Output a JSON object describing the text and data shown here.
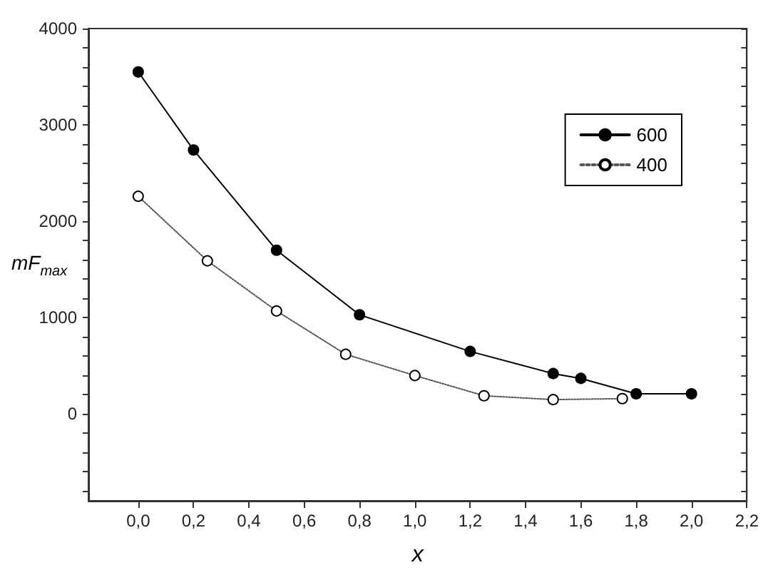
{
  "chart_data": {
    "type": "line",
    "xlabel": "x",
    "ylabel": "mF$_{max}$",
    "xlim": [
      -0.18,
      2.2
    ],
    "xticks": [
      {
        "value": 0,
        "label": "0,0"
      },
      {
        "value": 0.2,
        "label": "0,2"
      },
      {
        "value": 0.4,
        "label": "0,4"
      },
      {
        "value": 0.6,
        "label": "0,6"
      },
      {
        "value": 0.8,
        "label": "0,8"
      },
      {
        "value": 1.0,
        "label": "1,0"
      },
      {
        "value": 1.2,
        "label": "1,2"
      },
      {
        "value": 1.4,
        "label": "1,4"
      },
      {
        "value": 1.6,
        "label": "1,6"
      },
      {
        "value": 1.8,
        "label": "1,8"
      },
      {
        "value": 2.0,
        "label": "2,0"
      },
      {
        "value": 2.2,
        "label": "2,2"
      }
    ],
    "ylim": [
      -900,
      4000
    ],
    "yticks": [
      {
        "value": -800,
        "label": null
      },
      {
        "value": -600,
        "label": null
      },
      {
        "value": -400,
        "label": null
      },
      {
        "value": -200,
        "label": null
      },
      0,
      {
        "value": 200,
        "label": null
      },
      {
        "value": 400,
        "label": null
      },
      {
        "value": 600,
        "label": null
      },
      {
        "value": 800,
        "label": null
      },
      1000,
      {
        "value": 1200,
        "label": null
      },
      {
        "value": 1400,
        "label": null
      },
      {
        "value": 1600,
        "label": null
      },
      {
        "value": 1800,
        "label": null
      },
      2000,
      {
        "value": 2200,
        "label": null
      },
      {
        "value": 2400,
        "label": null
      },
      {
        "value": 2600,
        "label": null
      },
      {
        "value": 2800,
        "label": null
      },
      3000,
      {
        "value": 3200,
        "label": null
      },
      {
        "value": 3400,
        "label": null
      },
      {
        "value": 3600,
        "label": null
      },
      {
        "value": 3800,
        "label": null
      },
      4000
    ],
    "grid": false,
    "legend": "top right",
    "marker": "circle",
    "series": [
      {
        "name": "600",
        "color": "#000000",
        "line_style": "solid",
        "x": [
          0,
          0.2,
          0.5,
          0.8,
          1.2,
          1.5,
          1.6,
          1.8,
          2.0
        ],
        "values": [
          3550,
          2740,
          1700,
          1030,
          650,
          420,
          370,
          210,
          210
        ]
      },
      {
        "name": "400",
        "color": "#555555",
        "line_style": "dotted",
        "x": [
          0,
          0.25,
          0.5,
          0.75,
          1.0,
          1.25,
          1.5,
          1.75
        ],
        "values": [
          2260,
          1590,
          1070,
          620,
          400,
          190,
          150,
          160
        ]
      }
    ]
  }
}
